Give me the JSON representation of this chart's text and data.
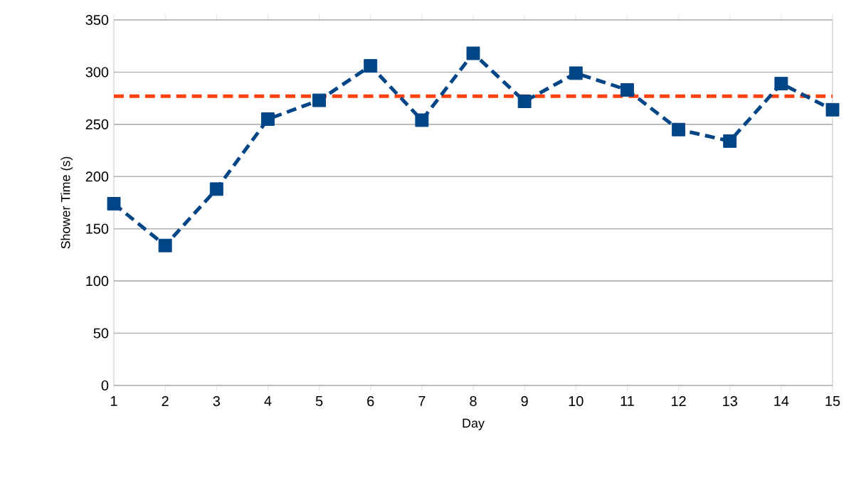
{
  "chart_data": {
    "type": "line",
    "xlabel": "Day",
    "ylabel": "Shower Time (s)",
    "x": [
      1,
      2,
      3,
      4,
      5,
      6,
      7,
      8,
      9,
      10,
      11,
      12,
      13,
      14,
      15
    ],
    "series": [
      {
        "color": "#004586",
        "values": [
          174,
          134,
          188,
          255,
          273,
          306,
          254,
          318,
          272,
          299,
          283,
          245,
          234,
          289,
          264
        ]
      }
    ],
    "xlim": [
      1,
      15
    ],
    "xticks": [
      1,
      2,
      3,
      4,
      5,
      6,
      7,
      8,
      9,
      10,
      11,
      12,
      13,
      14,
      15
    ],
    "ylim": [
      0,
      350
    ],
    "yticks": [
      0,
      50,
      100,
      150,
      200,
      250,
      300,
      350
    ],
    "ref_lines": [
      {
        "axis": "y",
        "value": 277,
        "color": "#ff420e",
        "line_style": "dashed"
      }
    ],
    "grid": "y",
    "marker": "square",
    "line_style": "dashed"
  }
}
